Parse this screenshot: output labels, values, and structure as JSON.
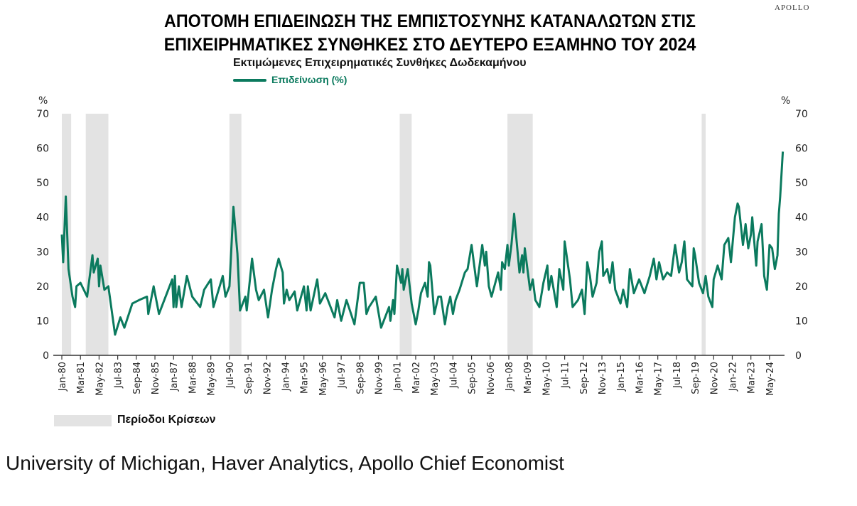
{
  "brand": "APOLLO",
  "source": "University of Michigan, Haver Analytics, Apollo Chief Economist",
  "chart_data": {
    "type": "line",
    "title": "ΑΠΟΤΟΜΗ ΕΠΙΔΕΙΝΩΣΗ ΤΗΣ ΕΜΠΙΣΤΟΣΥΝΗΣ ΚΑΤΑΝΑΛΩΤΩΝ ΣΤΙΣ ΕΠΙΧΕΙΡΗΜΑΤΙΚΕΣ ΣΥΝΘΗΚΕΣ ΣΤΟ ΔΕΥΤΕΡΟ ΕΞΑΜΗΝΟ ΤΟΥ 2024",
    "title_lines": [
      "ΑΠΟΤΟΜΗ ΕΠΙΔΕΙΝΩΣΗ ΤΗΣ ΕΜΠΙΣΤΟΣΥΝΗΣ ΚΑΤΑΝΑΛΩΤΩΝ ΣΤΙΣ",
      "ΕΠΙΧΕΙΡΗΜΑΤΙΚΕΣ ΣΥΝΘΗΚΕΣ ΣΤΟ ΔΕΥΤΕΡΟ ΕΞΑΜΗΝΟ ΤΟΥ 2024"
    ],
    "subtitle": "Εκτιμώμενες Επιχειρηματικές Συνθήκες Δωδεκαμήνου",
    "ylabel_left": "%",
    "ylabel_right": "%",
    "ylim": [
      0,
      70
    ],
    "yticks": [
      0,
      10,
      20,
      30,
      40,
      50,
      60,
      70
    ],
    "xlim": [
      "1980-01",
      "2025-03"
    ],
    "xtick_labels": [
      "Jan-80",
      "Mar-81",
      "May-82",
      "Jul-83",
      "Sep-84",
      "Nov-85",
      "Jan-87",
      "Mar-88",
      "May-89",
      "Jul-90",
      "Sep-91",
      "Nov-92",
      "Jan-94",
      "Mar-95",
      "May-96",
      "Jul-97",
      "Sep-98",
      "Nov-99",
      "Jan-01",
      "Mar-02",
      "May-03",
      "Jul-04",
      "Sep-05",
      "Nov-06",
      "Jan-08",
      "Mar-09",
      "May-10",
      "Jul-11",
      "Sep-12",
      "Nov-13",
      "Jan-15",
      "Mar-16",
      "May-17",
      "Jul-18",
      "Sep-19",
      "Nov-20",
      "Jan-22",
      "Mar-23",
      "May-24"
    ],
    "grid": false,
    "legend_placement": "top-left",
    "recession_label": "Περίοδοι Κρίσεων",
    "recession_color": "#e3e3e3",
    "recessions": [
      [
        "1980-01",
        "1980-07"
      ],
      [
        "1981-07",
        "1982-11"
      ],
      [
        "1990-07",
        "1991-03"
      ],
      [
        "2001-03",
        "2001-11"
      ],
      [
        "2007-12",
        "2009-06"
      ],
      [
        "2020-02",
        "2020-04"
      ]
    ],
    "series": [
      {
        "name": "Επιδείνωση (%)",
        "color": "#0b7a5e",
        "x": [
          "1980-01",
          "1980-02",
          "1980-04",
          "1980-06",
          "1980-09",
          "1980-11",
          "1980-12",
          "1981-03",
          "1981-08",
          "1981-12",
          "1982-01",
          "1982-04",
          "1982-05",
          "1982-06",
          "1982-09",
          "1982-12",
          "1983-05",
          "1983-09",
          "1983-12",
          "1984-06",
          "1984-11",
          "1985-05",
          "1985-06",
          "1985-10",
          "1986-02",
          "1986-08",
          "1986-12",
          "1987-01",
          "1987-02",
          "1987-03",
          "1987-05",
          "1987-07",
          "1987-11",
          "1988-03",
          "1988-09",
          "1988-12",
          "1989-05",
          "1989-07",
          "1990-02",
          "1990-04",
          "1990-07",
          "1990-10",
          "1991-01",
          "1991-03",
          "1991-07",
          "1991-08",
          "1991-12",
          "1992-03",
          "1992-05",
          "1992-09",
          "1992-12",
          "1993-03",
          "1993-06",
          "1993-08",
          "1993-11",
          "1993-12",
          "1994-02",
          "1994-04",
          "1994-08",
          "1994-10",
          "1995-03",
          "1995-05",
          "1995-06",
          "1995-08",
          "1996-01",
          "1996-03",
          "1996-07",
          "1997-02",
          "1997-04",
          "1997-07",
          "1997-11",
          "1998-05",
          "1998-09",
          "1998-12",
          "1999-02",
          "1999-04",
          "1999-09",
          "2000-01",
          "2000-07",
          "2000-08",
          "2000-10",
          "2000-11",
          "2001-01",
          "2001-04",
          "2001-05",
          "2001-06",
          "2001-09",
          "2001-12",
          "2002-03",
          "2002-05",
          "2002-07",
          "2002-10",
          "2002-12",
          "2003-01",
          "2003-02",
          "2003-05",
          "2003-08",
          "2003-10",
          "2004-01",
          "2004-03",
          "2004-05",
          "2004-07",
          "2004-09",
          "2004-12",
          "2005-04",
          "2005-06",
          "2005-09",
          "2006-01",
          "2006-05",
          "2006-07",
          "2006-08",
          "2006-10",
          "2006-12",
          "2007-05",
          "2007-07",
          "2007-08",
          "2007-10",
          "2007-12",
          "2008-01",
          "2008-03",
          "2008-05",
          "2008-09",
          "2008-11",
          "2008-12",
          "2009-01",
          "2009-05",
          "2009-07",
          "2009-09",
          "2009-12",
          "2010-03",
          "2010-06",
          "2010-07",
          "2010-09",
          "2011-01",
          "2011-03",
          "2011-06",
          "2011-07",
          "2011-11",
          "2012-01",
          "2012-05",
          "2012-08",
          "2012-10",
          "2012-12",
          "2013-02",
          "2013-04",
          "2013-07",
          "2013-09",
          "2013-11",
          "2013-12",
          "2014-03",
          "2014-05",
          "2014-07",
          "2014-09",
          "2015-01",
          "2015-03",
          "2015-06",
          "2015-08",
          "2015-11",
          "2016-03",
          "2016-07",
          "2016-11",
          "2017-02",
          "2017-04",
          "2017-06",
          "2017-09",
          "2017-12",
          "2018-03",
          "2018-06",
          "2018-09",
          "2018-11",
          "2019-01",
          "2019-03",
          "2019-07",
          "2019-08",
          "2019-09",
          "2019-12",
          "2020-03",
          "2020-05",
          "2020-07",
          "2020-10",
          "2020-11",
          "2021-02",
          "2021-05",
          "2021-07",
          "2021-10",
          "2021-12",
          "2022-03",
          "2022-05",
          "2022-06",
          "2022-09",
          "2022-11",
          "2023-01",
          "2023-03",
          "2023-04",
          "2023-07",
          "2023-08",
          "2023-11",
          "2024-01",
          "2024-03",
          "2024-05",
          "2024-07",
          "2024-09",
          "2024-11",
          "2024-12",
          "2025-01",
          "2025-03"
        ],
        "values": [
          35,
          27,
          46,
          25,
          17,
          14,
          20,
          21,
          17,
          29,
          24,
          28,
          20,
          26,
          19,
          20,
          6,
          11,
          8,
          15,
          16,
          17,
          12,
          20,
          12,
          18,
          22,
          14,
          23,
          14,
          20,
          14,
          23,
          17,
          14,
          19,
          22,
          14,
          23,
          17,
          20,
          43,
          29.5,
          13,
          17,
          13,
          28,
          19,
          16,
          19,
          11,
          19,
          25,
          28,
          24,
          15,
          19,
          16,
          18.5,
          13,
          20,
          13,
          20,
          13,
          22,
          15,
          18,
          11,
          16,
          10,
          16,
          9,
          21,
          21,
          12,
          14,
          17,
          8,
          14,
          10,
          16,
          12,
          26,
          21,
          25,
          19,
          25,
          15,
          9,
          13,
          18,
          21,
          17,
          27,
          26,
          12,
          17,
          17,
          9,
          14,
          17,
          12,
          16,
          19,
          24,
          25,
          32,
          20,
          32,
          26,
          30,
          20,
          17,
          24,
          19,
          27,
          25,
          32,
          26,
          32,
          41,
          24,
          29,
          24,
          31,
          19,
          22,
          16,
          14,
          21,
          26,
          19,
          23,
          14,
          25,
          19,
          33,
          22,
          14,
          16,
          19,
          12,
          27,
          23,
          17,
          21,
          30,
          33,
          23,
          25,
          21,
          27,
          19,
          15,
          19,
          14,
          25,
          18,
          22,
          18,
          23,
          28,
          22,
          27,
          22,
          24,
          23,
          32,
          24,
          27,
          33,
          22,
          20,
          31,
          29,
          21,
          18,
          23,
          17,
          14,
          22,
          26,
          22,
          32,
          34,
          27,
          40,
          44,
          43,
          32,
          38,
          31,
          35,
          40,
          26,
          33,
          38,
          23,
          19,
          32,
          31,
          25,
          29,
          41,
          46,
          59
        ]
      }
    ]
  }
}
